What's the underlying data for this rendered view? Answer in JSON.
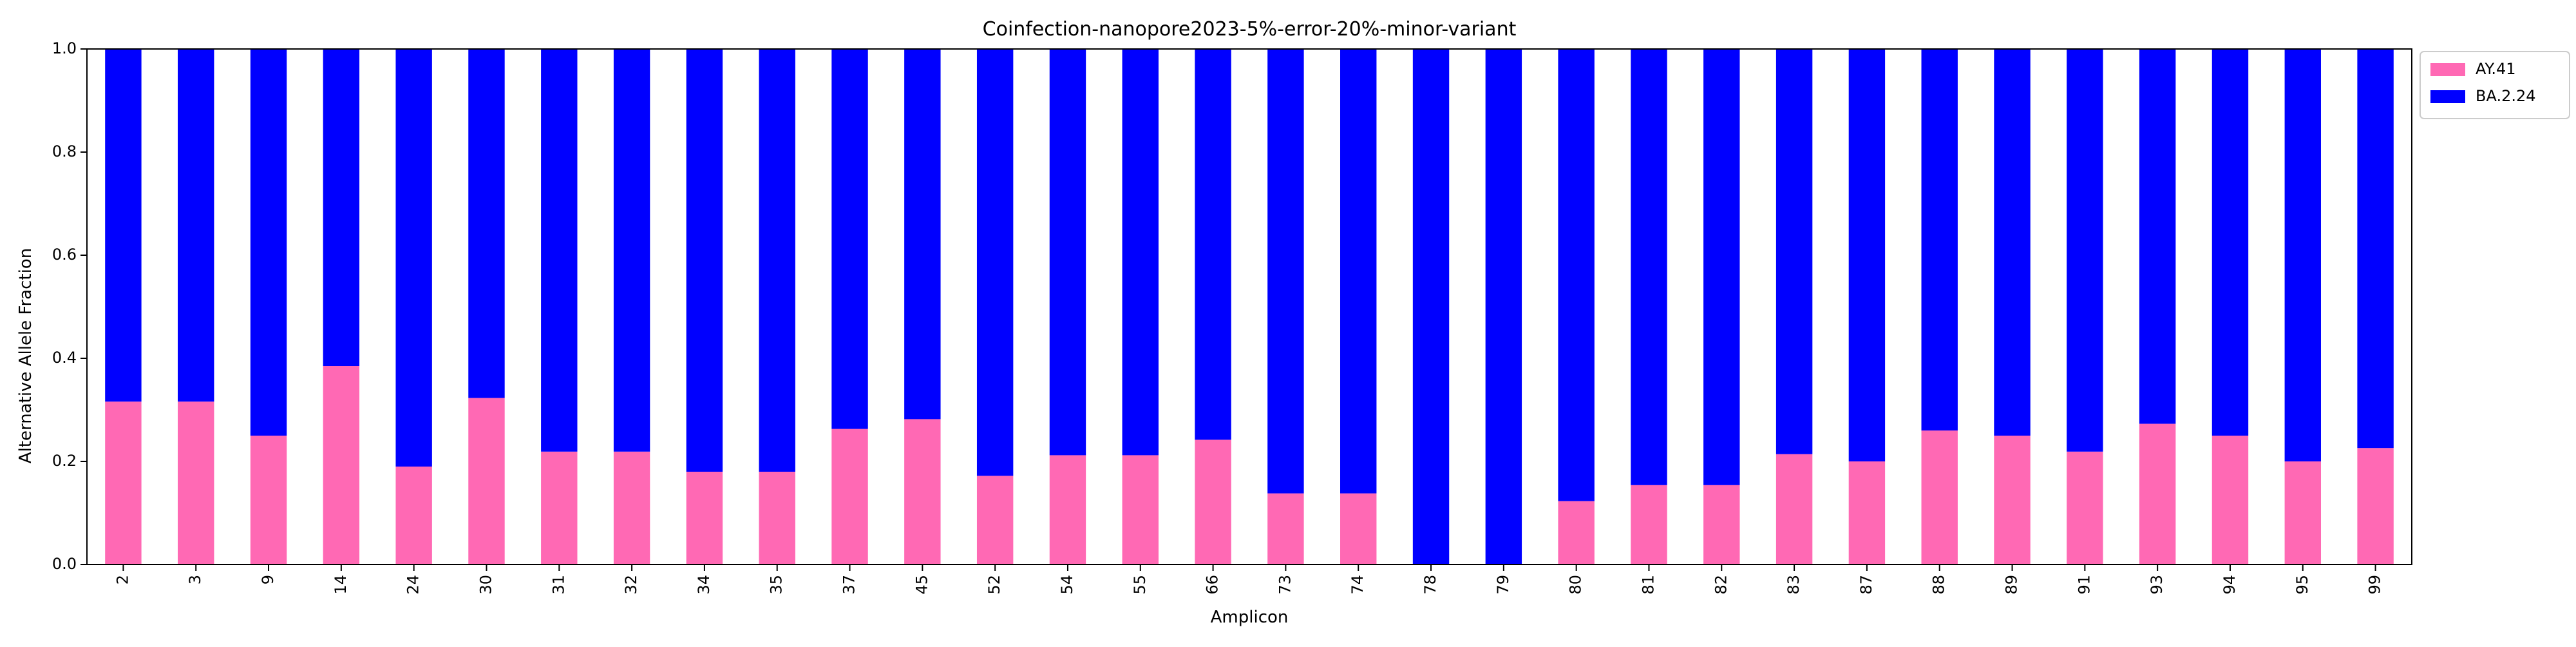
{
  "chart_data": {
    "type": "bar",
    "stacked": true,
    "title": "Coinfection-nanopore2023-5%-error-20%-minor-variant",
    "xlabel": "Amplicon",
    "ylabel": "Alternative Allele Fraction",
    "ylim": [
      0,
      1.0
    ],
    "yticks": [
      "0.0",
      "0.2",
      "0.4",
      "0.6",
      "0.8",
      "1.0"
    ],
    "grid": false,
    "legend_position": "outside-top-right",
    "categories": [
      "2",
      "3",
      "9",
      "14",
      "24",
      "30",
      "31",
      "32",
      "34",
      "35",
      "37",
      "45",
      "52",
      "54",
      "55",
      "66",
      "73",
      "74",
      "78",
      "79",
      "80",
      "81",
      "82",
      "83",
      "87",
      "88",
      "89",
      "91",
      "93",
      "94",
      "95",
      "99"
    ],
    "series": [
      {
        "name": "AY.41",
        "color": "#ff69b4",
        "values": [
          0.316,
          0.316,
          0.25,
          0.385,
          0.19,
          0.323,
          0.219,
          0.219,
          0.18,
          0.18,
          0.263,
          0.282,
          0.172,
          0.212,
          0.212,
          0.242,
          0.138,
          0.138,
          0.0,
          0.0,
          0.123,
          0.154,
          0.154,
          0.214,
          0.2,
          0.26,
          0.25,
          0.219,
          0.273,
          0.25,
          0.2,
          0.226
        ]
      },
      {
        "name": "BA.2.24",
        "color": "#0000ff",
        "values": [
          0.684,
          0.684,
          0.75,
          0.615,
          0.81,
          0.677,
          0.781,
          0.781,
          0.82,
          0.82,
          0.737,
          0.718,
          0.828,
          0.788,
          0.788,
          0.758,
          0.862,
          0.862,
          1.0,
          1.0,
          0.877,
          0.846,
          0.846,
          0.786,
          0.8,
          0.74,
          0.75,
          0.781,
          0.727,
          0.75,
          0.8,
          0.774
        ]
      }
    ]
  }
}
